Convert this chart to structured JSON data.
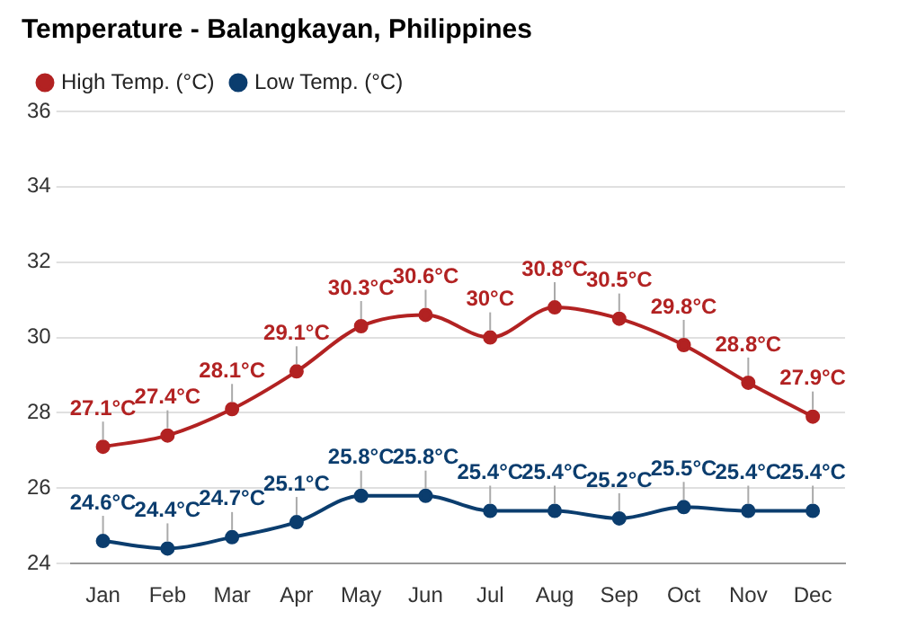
{
  "chart_data": {
    "type": "line",
    "title": "Temperature - Balangkayan, Philippines",
    "categories": [
      "Jan",
      "Feb",
      "Mar",
      "Apr",
      "May",
      "Jun",
      "Jul",
      "Aug",
      "Sep",
      "Oct",
      "Nov",
      "Dec"
    ],
    "series": [
      {
        "name": "High Temp. (°C)",
        "color": "#b22222",
        "values": [
          27.1,
          27.4,
          28.1,
          29.1,
          30.3,
          30.6,
          30.0,
          30.8,
          30.5,
          29.8,
          28.8,
          27.9
        ],
        "value_labels": [
          "27.1°C",
          "27.4°C",
          "28.1°C",
          "29.1°C",
          "30.3°C",
          "30.6°C",
          "30°C",
          "30.8°C",
          "30.5°C",
          "29.8°C",
          "28.8°C",
          "27.9°C"
        ]
      },
      {
        "name": "Low Temp. (°C)",
        "color": "#0b3d6e",
        "values": [
          24.6,
          24.4,
          24.7,
          25.1,
          25.8,
          25.8,
          25.4,
          25.4,
          25.2,
          25.5,
          25.4,
          25.4
        ],
        "value_labels": [
          "24.6°C",
          "24.4°C",
          "24.7°C",
          "25.1°C",
          "25.8°C",
          "25.8°C",
          "25.4°C",
          "25.4°C",
          "25.2°C",
          "25.5°C",
          "25.4°C",
          "25.4°C"
        ]
      }
    ],
    "ylim": [
      24,
      36
    ],
    "yticks": [
      24,
      26,
      28,
      30,
      32,
      34,
      36
    ],
    "grid": "y",
    "legend": "top left",
    "marker": "circle",
    "line_style": "solid"
  }
}
